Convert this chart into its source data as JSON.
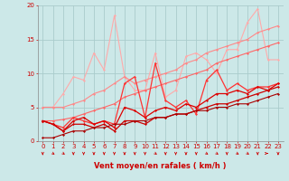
{
  "xlabel": "Vent moyen/en rafales ( km/h )",
  "bg_color": "#cce8e8",
  "grid_color": "#aacccc",
  "axis_color": "#cc0000",
  "x_values": [
    0,
    1,
    2,
    3,
    4,
    5,
    6,
    7,
    8,
    9,
    10,
    11,
    12,
    13,
    14,
    15,
    16,
    17,
    18,
    19,
    20,
    21,
    22,
    23
  ],
  "series": [
    {
      "color": "#ffaaaa",
      "alpha": 1.0,
      "lw": 0.8,
      "y": [
        5.0,
        5.0,
        7.0,
        9.5,
        9.0,
        13.0,
        10.5,
        18.5,
        9.5,
        7.5,
        7.5,
        13.0,
        6.5,
        7.5,
        12.5,
        13.0,
        12.0,
        10.0,
        13.5,
        13.5,
        17.5,
        19.5,
        12.0,
        12.0
      ]
    },
    {
      "color": "#ff8888",
      "alpha": 1.0,
      "lw": 0.8,
      "y": [
        5.0,
        5.0,
        5.0,
        5.5,
        6.0,
        7.0,
        7.5,
        8.5,
        9.5,
        8.5,
        9.0,
        9.5,
        10.0,
        10.5,
        11.5,
        12.0,
        13.0,
        13.5,
        14.0,
        14.5,
        15.0,
        16.0,
        16.5,
        17.0
      ]
    },
    {
      "color": "#ff6666",
      "alpha": 1.0,
      "lw": 0.8,
      "y": [
        3.0,
        3.0,
        3.2,
        3.5,
        4.0,
        4.5,
        5.0,
        5.5,
        6.5,
        7.0,
        7.5,
        8.0,
        8.5,
        9.0,
        9.5,
        10.0,
        10.5,
        11.5,
        12.0,
        12.5,
        13.0,
        13.5,
        14.0,
        14.5
      ]
    },
    {
      "color": "#ff3333",
      "alpha": 1.0,
      "lw": 0.9,
      "y": [
        3.0,
        2.5,
        2.0,
        3.5,
        3.0,
        2.5,
        3.0,
        2.5,
        8.5,
        9.5,
        3.5,
        11.5,
        6.0,
        5.0,
        6.0,
        4.0,
        9.0,
        10.5,
        7.5,
        8.5,
        7.5,
        8.0,
        8.0,
        8.5
      ]
    },
    {
      "color": "#dd0000",
      "alpha": 1.0,
      "lw": 0.9,
      "y": [
        3.0,
        2.5,
        1.5,
        3.0,
        3.5,
        2.5,
        3.0,
        2.0,
        5.0,
        4.5,
        3.5,
        4.5,
        5.0,
        4.5,
        5.5,
        5.0,
        6.0,
        7.0,
        7.0,
        7.5,
        7.0,
        8.0,
        7.5,
        8.5
      ]
    },
    {
      "color": "#cc0000",
      "alpha": 1.0,
      "lw": 0.9,
      "y": [
        3.0,
        2.5,
        1.5,
        2.5,
        2.5,
        2.0,
        2.5,
        1.5,
        3.0,
        3.0,
        2.5,
        3.5,
        3.5,
        4.0,
        4.0,
        4.5,
        5.0,
        5.5,
        5.5,
        6.0,
        6.5,
        7.0,
        7.5,
        8.0
      ]
    },
    {
      "color": "#aa0000",
      "alpha": 1.0,
      "lw": 0.8,
      "y": [
        0.5,
        0.5,
        1.0,
        1.5,
        1.5,
        2.0,
        2.0,
        2.5,
        2.5,
        3.0,
        3.0,
        3.5,
        3.5,
        4.0,
        4.0,
        4.5,
        4.5,
        5.0,
        5.0,
        5.5,
        5.5,
        6.0,
        6.5,
        7.0
      ]
    }
  ],
  "arrow_angles": [
    0,
    45,
    45,
    0,
    0,
    0,
    0,
    0,
    0,
    0,
    0,
    45,
    0,
    0,
    0,
    0,
    45,
    45,
    0,
    45,
    45,
    0,
    90,
    0
  ],
  "ylim": [
    0,
    20
  ],
  "xlim": [
    -0.5,
    23.5
  ],
  "yticks": [
    0,
    5,
    10,
    15,
    20
  ],
  "xticks": [
    0,
    1,
    2,
    3,
    4,
    5,
    6,
    7,
    8,
    9,
    10,
    11,
    12,
    13,
    14,
    15,
    16,
    17,
    18,
    19,
    20,
    21,
    22,
    23
  ],
  "tick_fontsize": 5.0,
  "xlabel_fontsize": 6.0
}
